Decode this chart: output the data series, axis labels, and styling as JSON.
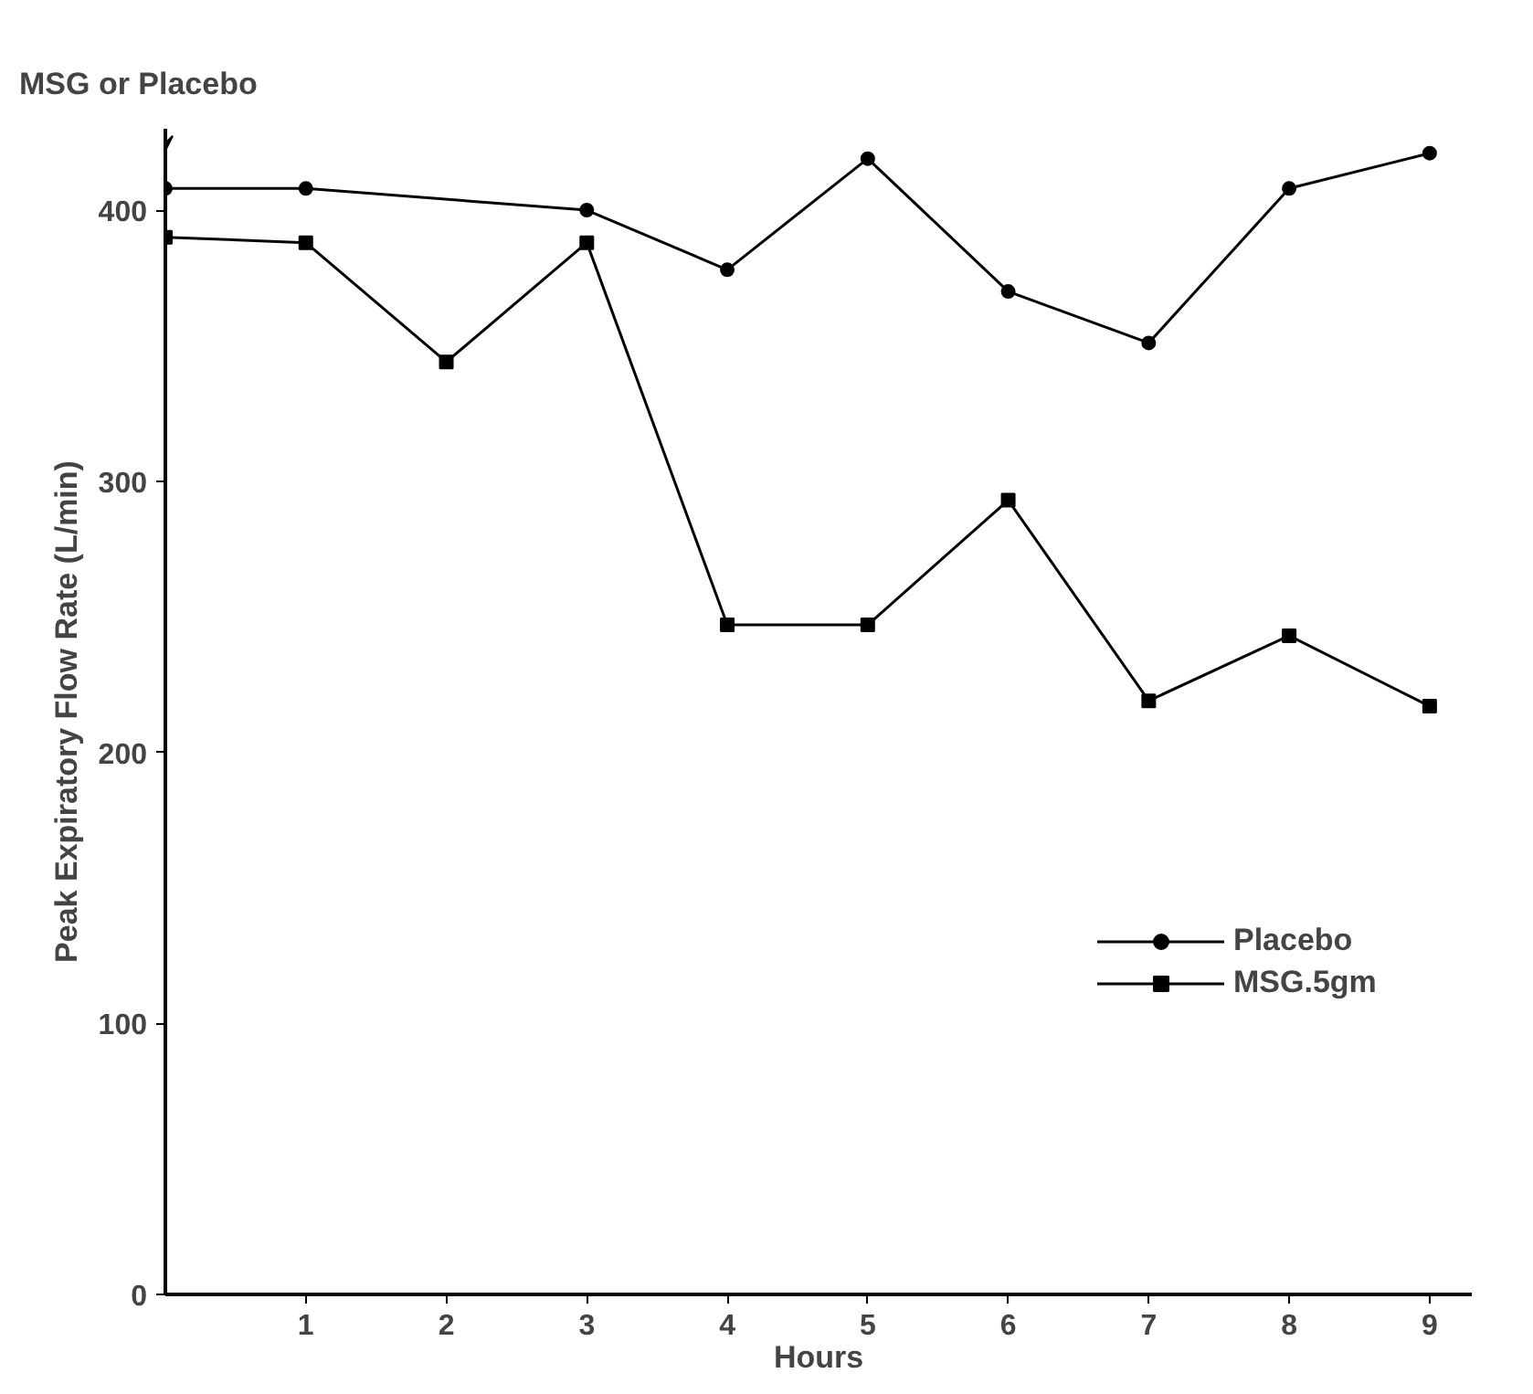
{
  "chart_data": {
    "type": "line",
    "xlabel": "Hours",
    "ylabel": "Peak Expiratory Flow Rate (L/min)",
    "xlim": [
      0,
      9.3
    ],
    "ylim": [
      0,
      430
    ],
    "xticks": [
      1,
      2,
      3,
      4,
      5,
      6,
      7,
      8,
      9
    ],
    "yticks": [
      0,
      100,
      200,
      300,
      400
    ],
    "grid": false,
    "legend": "bottom right",
    "annotations": [
      "MSG or Placebo"
    ],
    "series": [
      {
        "name": "Placebo",
        "color": "#000000",
        "marker": "circle",
        "x": [
          0,
          1,
          3,
          4,
          5,
          6,
          7,
          8,
          9
        ],
        "values": [
          408,
          408,
          400,
          378,
          419,
          370,
          351,
          408,
          421
        ]
      },
      {
        "name": "MSG.5gm",
        "color": "#000000",
        "marker": "square",
        "x": [
          0,
          1,
          2,
          3,
          4,
          5,
          6,
          7,
          8,
          9
        ],
        "values": [
          390,
          388,
          344,
          388,
          247,
          247,
          293,
          219,
          243,
          217
        ]
      }
    ]
  }
}
